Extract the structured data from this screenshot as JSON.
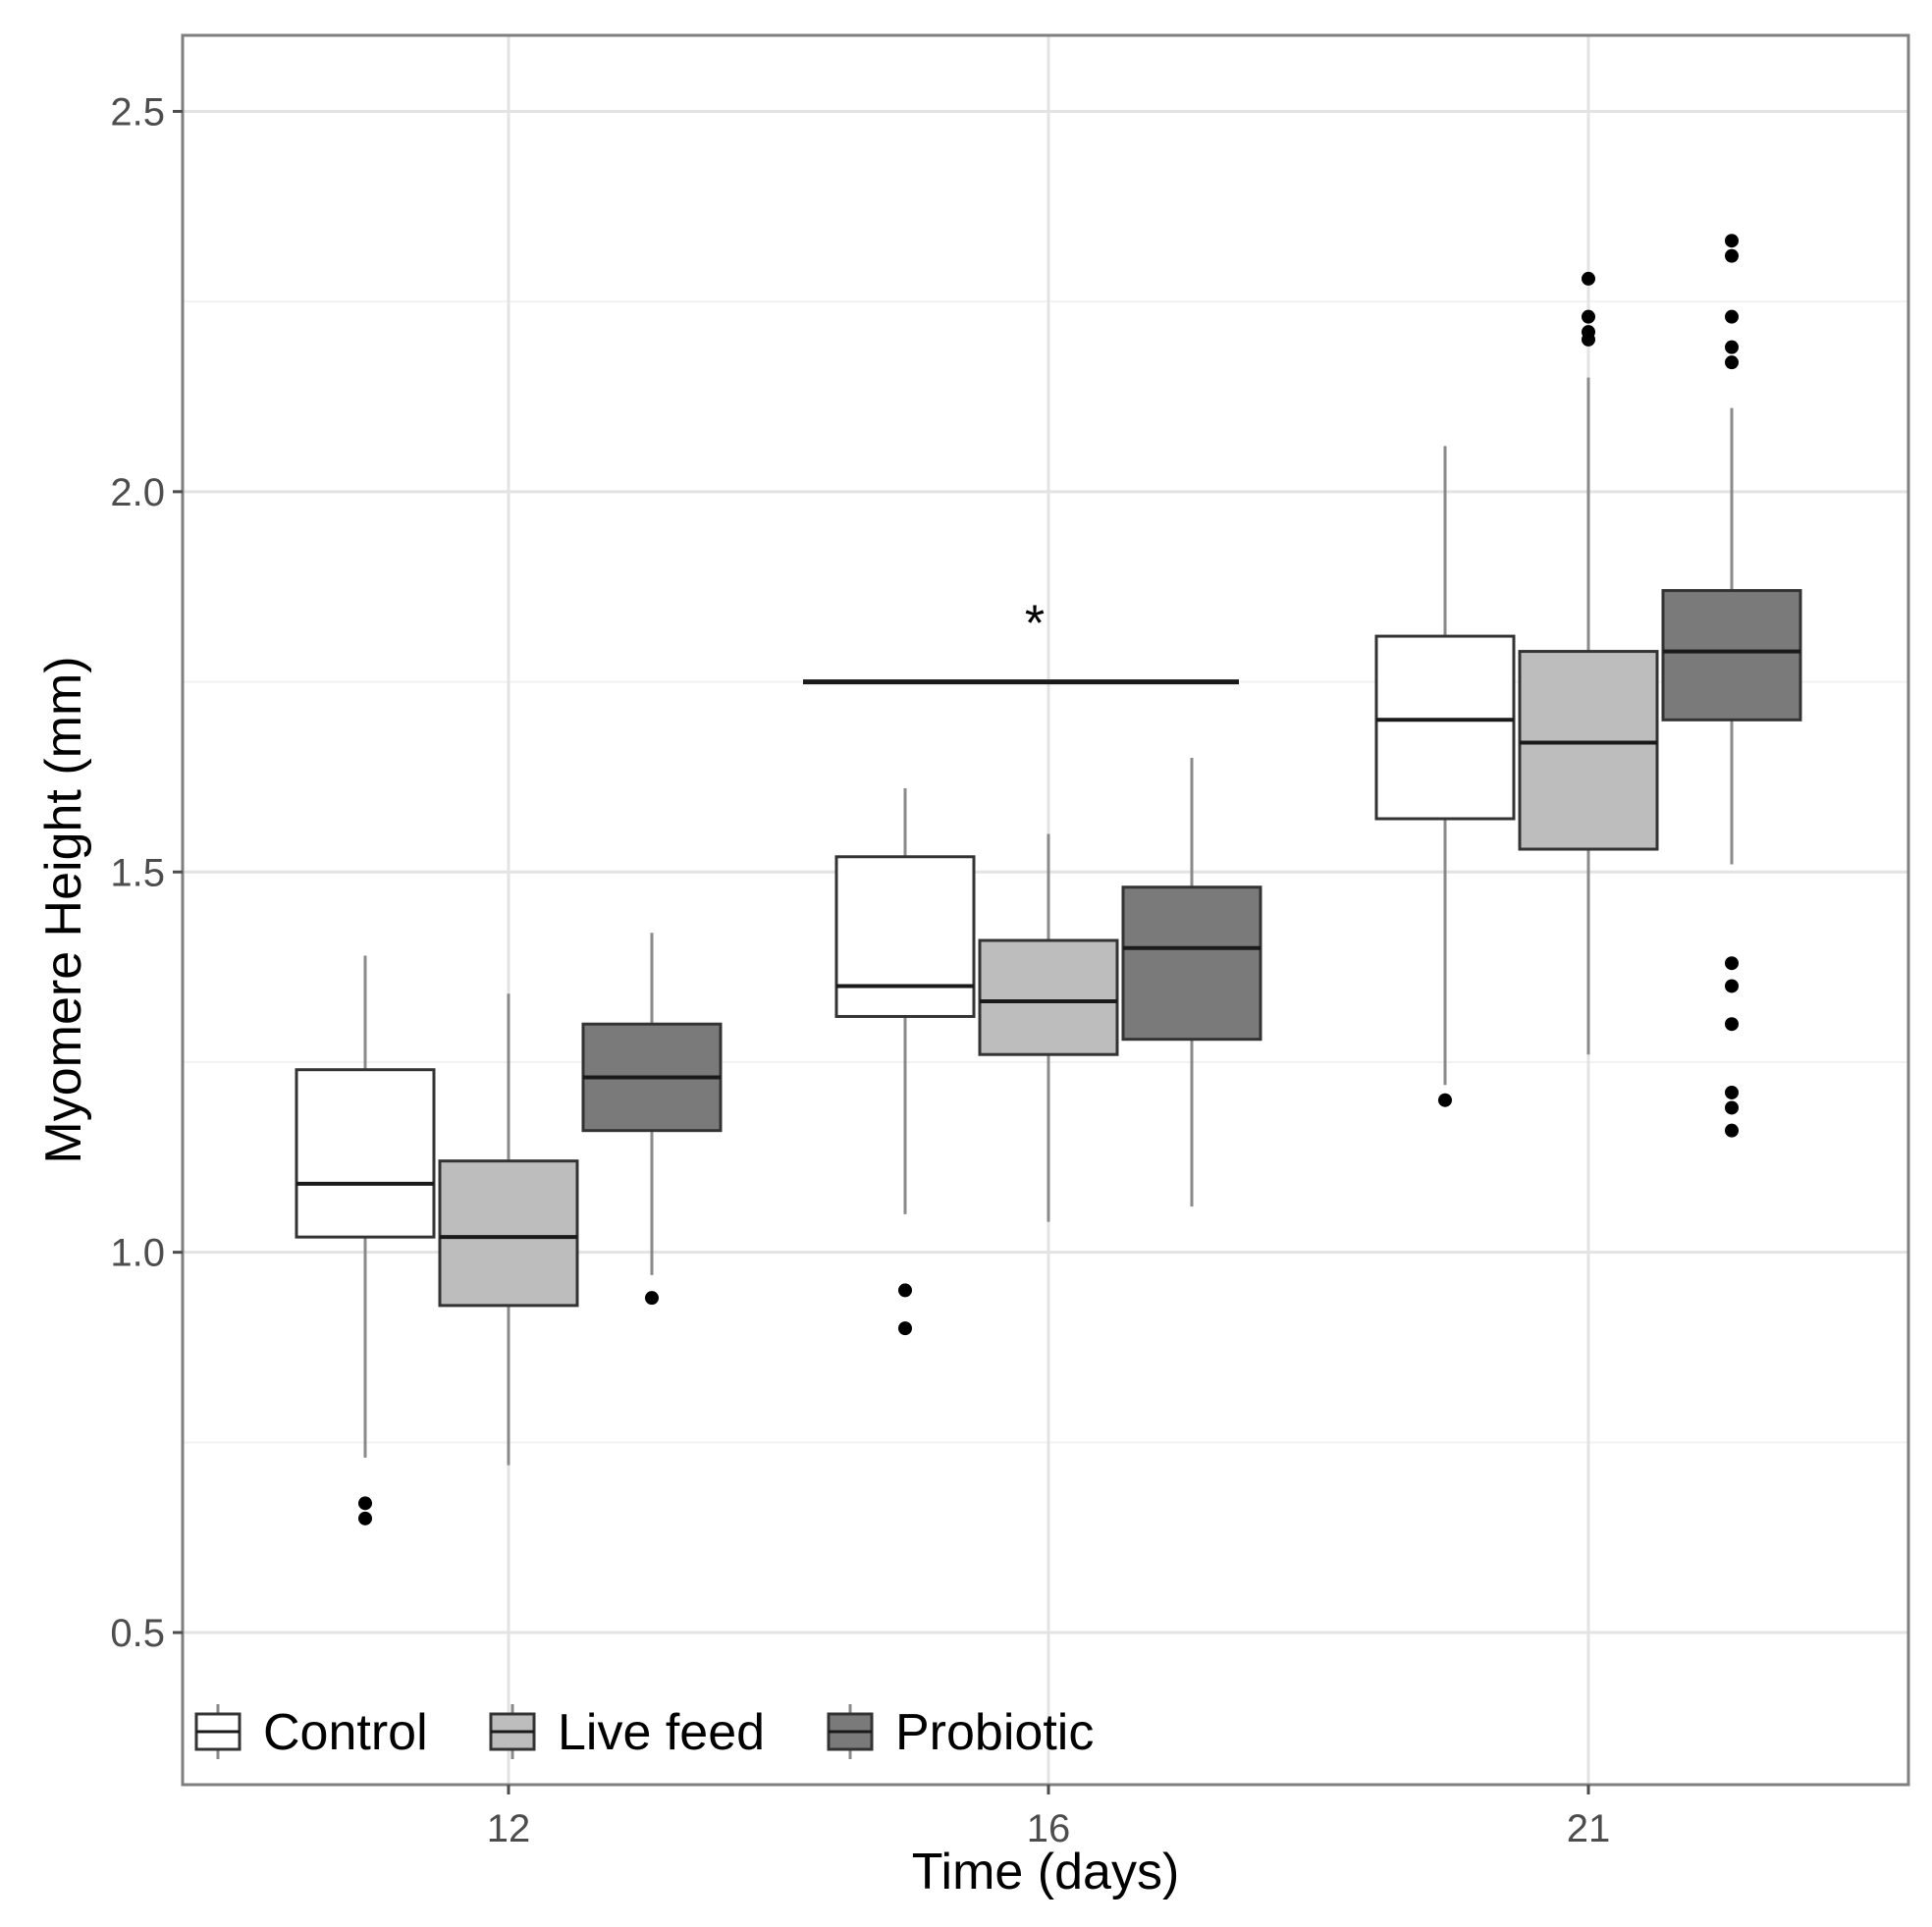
{
  "chart_data": {
    "type": "boxplot",
    "xlabel": "Time (days)",
    "ylabel": "Myomere Height (mm)",
    "ylim": [
      0.3,
      2.6
    ],
    "yticks": [
      0.5,
      1.0,
      1.5,
      2.0,
      2.5
    ],
    "ytick_labels": [
      "0.5",
      "1.0",
      "1.5",
      "2.0",
      "2.5"
    ],
    "categories": [
      "12",
      "16",
      "21"
    ],
    "legend_position": "bottom-left",
    "series": [
      {
        "name": "Control",
        "color": "#ffffff",
        "boxes": [
          {
            "category": "12",
            "q1": 1.02,
            "median": 1.09,
            "q3": 1.24,
            "whisker_low": 0.73,
            "whisker_high": 1.39,
            "outliers": [
              0.67,
              0.65
            ]
          },
          {
            "category": "16",
            "q1": 1.31,
            "median": 1.35,
            "q3": 1.52,
            "whisker_low": 1.05,
            "whisker_high": 1.61,
            "outliers": [
              0.95,
              0.9
            ]
          },
          {
            "category": "21",
            "q1": 1.57,
            "median": 1.7,
            "q3": 1.81,
            "whisker_low": 1.22,
            "whisker_high": 2.06,
            "outliers": [
              1.2
            ]
          }
        ]
      },
      {
        "name": "Live feed",
        "color": "#bdbdbd",
        "boxes": [
          {
            "category": "12",
            "q1": 0.93,
            "median": 1.02,
            "q3": 1.12,
            "whisker_low": 0.72,
            "whisker_high": 1.34,
            "outliers": []
          },
          {
            "category": "16",
            "q1": 1.26,
            "median": 1.33,
            "q3": 1.41,
            "whisker_low": 1.04,
            "whisker_high": 1.55,
            "outliers": []
          },
          {
            "category": "21",
            "q1": 1.53,
            "median": 1.67,
            "q3": 1.79,
            "whisker_low": 1.26,
            "whisker_high": 2.15,
            "outliers": [
              2.28,
              2.23,
              2.21,
              2.2
            ]
          }
        ]
      },
      {
        "name": "Probiotic",
        "color": "#7a7a7a",
        "boxes": [
          {
            "category": "12",
            "q1": 1.16,
            "median": 1.23,
            "q3": 1.3,
            "whisker_low": 0.97,
            "whisker_high": 1.42,
            "outliers": [
              0.94
            ]
          },
          {
            "category": "16",
            "q1": 1.28,
            "median": 1.4,
            "q3": 1.48,
            "whisker_low": 1.06,
            "whisker_high": 1.65,
            "outliers": []
          },
          {
            "category": "21",
            "q1": 1.7,
            "median": 1.79,
            "q3": 1.87,
            "whisker_low": 1.51,
            "whisker_high": 2.11,
            "outliers": [
              2.33,
              2.31,
              2.23,
              2.19,
              2.17,
              1.38,
              1.35,
              1.3,
              1.21,
              1.19,
              1.16
            ]
          }
        ]
      }
    ],
    "annotations": [
      {
        "type": "significance-bar",
        "category": "16",
        "label": "*",
        "y": 1.75
      }
    ]
  }
}
